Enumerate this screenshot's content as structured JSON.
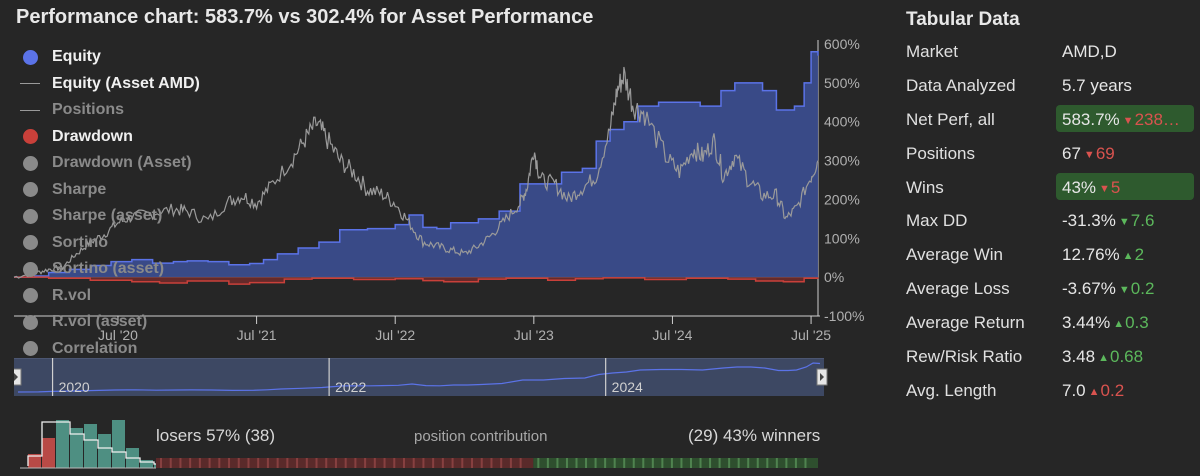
{
  "title": "Performance chart: 583.7% vs 302.4% for Asset Performance",
  "legend": [
    {
      "label": "Equity",
      "marker": "dot",
      "color": "#5b73e8",
      "active": true
    },
    {
      "label": "Equity (Asset AMD)",
      "marker": "line",
      "color": "#9a9a9a",
      "active": true
    },
    {
      "label": "Positions",
      "marker": "line",
      "color": "#9a9a9a",
      "active": false
    },
    {
      "label": "Drawdown",
      "marker": "dot",
      "color": "#c9403a",
      "active": true
    },
    {
      "label": "Drawdown (Asset)",
      "marker": "dot",
      "color": "#8a8a8a",
      "active": false
    },
    {
      "label": "Sharpe",
      "marker": "dot",
      "color": "#8a8a8a",
      "active": false
    },
    {
      "label": "Sharpe (asset)",
      "marker": "dot",
      "color": "#8a8a8a",
      "active": false
    },
    {
      "label": "Sortino",
      "marker": "dot",
      "color": "#8a8a8a",
      "active": false
    },
    {
      "label": "Sortino (asset)",
      "marker": "dot",
      "color": "#8a8a8a",
      "active": false
    },
    {
      "label": "R.vol",
      "marker": "dot",
      "color": "#8a8a8a",
      "active": false
    },
    {
      "label": "R.vol (asset)",
      "marker": "dot",
      "color": "#8a8a8a",
      "active": false
    },
    {
      "label": "Correlation",
      "marker": "dot",
      "color": "#8a8a8a",
      "active": false
    }
  ],
  "chart_data": {
    "type": "area",
    "title": "Performance chart: 583.7% vs 302.4% for Asset Performance",
    "x_ticks": [
      "Jul '20",
      "Jul '21",
      "Jul '22",
      "Jul '23",
      "Jul '24",
      "Jul '25"
    ],
    "y_ticks": [
      "600%",
      "500%",
      "400%",
      "300%",
      "200%",
      "100%",
      "0%",
      "-100%"
    ],
    "ylim": [
      -100,
      600
    ],
    "xlim": [
      2019.75,
      2025.55
    ],
    "y_axis_side": "right",
    "series": [
      {
        "name": "Equity",
        "color": "#5b73e8",
        "points": [
          [
            2019.75,
            0
          ],
          [
            2019.9,
            3
          ],
          [
            2020.0,
            12
          ],
          [
            2020.15,
            20
          ],
          [
            2020.3,
            30
          ],
          [
            2020.45,
            40
          ],
          [
            2020.6,
            45
          ],
          [
            2020.75,
            36
          ],
          [
            2020.9,
            40
          ],
          [
            2021.0,
            42
          ],
          [
            2021.15,
            40
          ],
          [
            2021.3,
            32
          ],
          [
            2021.45,
            35
          ],
          [
            2021.55,
            45
          ],
          [
            2021.65,
            60
          ],
          [
            2021.8,
            75
          ],
          [
            2021.95,
            90
          ],
          [
            2022.1,
            122
          ],
          [
            2022.3,
            125
          ],
          [
            2022.5,
            135
          ],
          [
            2022.6,
            160
          ],
          [
            2022.7,
            128
          ],
          [
            2022.8,
            125
          ],
          [
            2022.9,
            140
          ],
          [
            2023.0,
            140
          ],
          [
            2023.1,
            150
          ],
          [
            2023.25,
            170
          ],
          [
            2023.4,
            240
          ],
          [
            2023.55,
            240
          ],
          [
            2023.7,
            270
          ],
          [
            2023.85,
            280
          ],
          [
            2023.95,
            350
          ],
          [
            2024.05,
            380
          ],
          [
            2024.15,
            400
          ],
          [
            2024.25,
            440
          ],
          [
            2024.4,
            450
          ],
          [
            2024.55,
            450
          ],
          [
            2024.7,
            440
          ],
          [
            2024.85,
            480
          ],
          [
            2024.95,
            500
          ],
          [
            2025.05,
            500
          ],
          [
            2025.15,
            480
          ],
          [
            2025.25,
            430
          ],
          [
            2025.32,
            430
          ],
          [
            2025.38,
            440
          ],
          [
            2025.45,
            500
          ],
          [
            2025.5,
            580
          ],
          [
            2025.55,
            570
          ]
        ]
      },
      {
        "name": "Equity (Asset AMD)",
        "color": "#9a9a9a",
        "points": [
          [
            2019.75,
            0
          ],
          [
            2019.9,
            10
          ],
          [
            2020.0,
            20
          ],
          [
            2020.1,
            25
          ],
          [
            2020.2,
            60
          ],
          [
            2020.3,
            90
          ],
          [
            2020.4,
            110
          ],
          [
            2020.5,
            140
          ],
          [
            2020.6,
            155
          ],
          [
            2020.75,
            165
          ],
          [
            2020.9,
            175
          ],
          [
            2021.0,
            170
          ],
          [
            2021.15,
            145
          ],
          [
            2021.3,
            195
          ],
          [
            2021.4,
            210
          ],
          [
            2021.5,
            190
          ],
          [
            2021.6,
            235
          ],
          [
            2021.75,
            300
          ],
          [
            2021.85,
            355
          ],
          [
            2021.93,
            395
          ],
          [
            2022.0,
            360
          ],
          [
            2022.1,
            300
          ],
          [
            2022.2,
            270
          ],
          [
            2022.3,
            225
          ],
          [
            2022.4,
            215
          ],
          [
            2022.5,
            190
          ],
          [
            2022.6,
            140
          ],
          [
            2022.7,
            90
          ],
          [
            2022.8,
            80
          ],
          [
            2022.9,
            70
          ],
          [
            2023.0,
            60
          ],
          [
            2023.1,
            80
          ],
          [
            2023.2,
            110
          ],
          [
            2023.3,
            150
          ],
          [
            2023.4,
            190
          ],
          [
            2023.45,
            230
          ],
          [
            2023.5,
            330
          ],
          [
            2023.55,
            250
          ],
          [
            2023.65,
            240
          ],
          [
            2023.75,
            200
          ],
          [
            2023.85,
            230
          ],
          [
            2023.95,
            260
          ],
          [
            2024.05,
            380
          ],
          [
            2024.1,
            480
          ],
          [
            2024.15,
            520
          ],
          [
            2024.22,
            440
          ],
          [
            2024.3,
            420
          ],
          [
            2024.45,
            310
          ],
          [
            2024.55,
            270
          ],
          [
            2024.65,
            330
          ],
          [
            2024.72,
            310
          ],
          [
            2024.8,
            350
          ],
          [
            2024.87,
            260
          ],
          [
            2024.95,
            310
          ],
          [
            2025.05,
            250
          ],
          [
            2025.15,
            210
          ],
          [
            2025.25,
            210
          ],
          [
            2025.32,
            150
          ],
          [
            2025.4,
            180
          ],
          [
            2025.5,
            260
          ],
          [
            2025.55,
            300
          ]
        ]
      },
      {
        "name": "Drawdown",
        "color": "#c9403a",
        "points": [
          [
            2019.75,
            0
          ],
          [
            2020.0,
            -3
          ],
          [
            2020.3,
            -8
          ],
          [
            2020.6,
            -12
          ],
          [
            2020.8,
            -15
          ],
          [
            2021.0,
            -10
          ],
          [
            2021.3,
            -18
          ],
          [
            2021.45,
            -14
          ],
          [
            2021.7,
            -5
          ],
          [
            2021.9,
            -3
          ],
          [
            2022.2,
            -6
          ],
          [
            2022.5,
            -4
          ],
          [
            2022.7,
            -9
          ],
          [
            2022.85,
            -12
          ],
          [
            2023.1,
            -5
          ],
          [
            2023.3,
            -3
          ],
          [
            2023.6,
            -8
          ],
          [
            2023.8,
            -4
          ],
          [
            2024.0,
            -2
          ],
          [
            2024.3,
            -6
          ],
          [
            2024.6,
            -3
          ],
          [
            2024.9,
            -5
          ],
          [
            2025.1,
            -10
          ],
          [
            2025.3,
            -12
          ],
          [
            2025.45,
            -3
          ],
          [
            2025.55,
            -4
          ]
        ]
      }
    ],
    "navigator": {
      "labels": [
        "2020",
        "2022",
        "2024"
      ]
    },
    "histogram": {
      "bars": [
        14,
        30,
        48,
        40,
        44,
        34,
        48,
        20,
        8,
        4,
        3,
        2,
        1
      ],
      "bar_colors": [
        "#b84a46",
        "#b84a46",
        "#4e8f82",
        "#4e8f82",
        "#4e8f82",
        "#4e8f82",
        "#4e8f82",
        "#4e8f82",
        "#4e8f82",
        "#4e8f82",
        "#4e8f82",
        "#4e8f82",
        "#4e8f82"
      ]
    },
    "contribution_strip": {
      "losers_share": 0.57,
      "winners_share": 0.43
    }
  },
  "bottom": {
    "losers_label": "losers 57% (38)",
    "contribution_label": "position contribution",
    "winners_label": "(29) 43% winners"
  },
  "table": {
    "title": "Tabular Data",
    "rows": [
      {
        "label": "Market",
        "value": "AMD,D",
        "delta": "",
        "dir": "",
        "highlight": false
      },
      {
        "label": "Data Analyzed",
        "value": "5.7 years",
        "delta": "",
        "dir": "",
        "highlight": false
      },
      {
        "label": "Net Perf, all",
        "value": "583.7%",
        "delta": "238…",
        "dir": "down",
        "highlight": true
      },
      {
        "label": "Positions",
        "value": "67",
        "delta": "69",
        "dir": "down",
        "highlight": false
      },
      {
        "label": "Wins",
        "value": "43%",
        "delta": "5",
        "dir": "down",
        "highlight": true
      },
      {
        "label": "Max DD",
        "value": "-31.3%",
        "delta": "7.6",
        "dir": "down-green",
        "highlight": false
      },
      {
        "label": "Average Win",
        "value": "12.76%",
        "delta": "2",
        "dir": "up",
        "highlight": false
      },
      {
        "label": "Average Loss",
        "value": "-3.67%",
        "delta": "0.2",
        "dir": "down-green",
        "highlight": false
      },
      {
        "label": "Average Return",
        "value": "3.44%",
        "delta": "0.3",
        "dir": "up",
        "highlight": false
      },
      {
        "label": "Rew/Risk Ratio",
        "value": "3.48",
        "delta": "0.68",
        "dir": "up",
        "highlight": false
      },
      {
        "label": "Avg. Length",
        "value": "7.0",
        "delta": "0.2",
        "dir": "up-red",
        "highlight": false
      }
    ]
  }
}
